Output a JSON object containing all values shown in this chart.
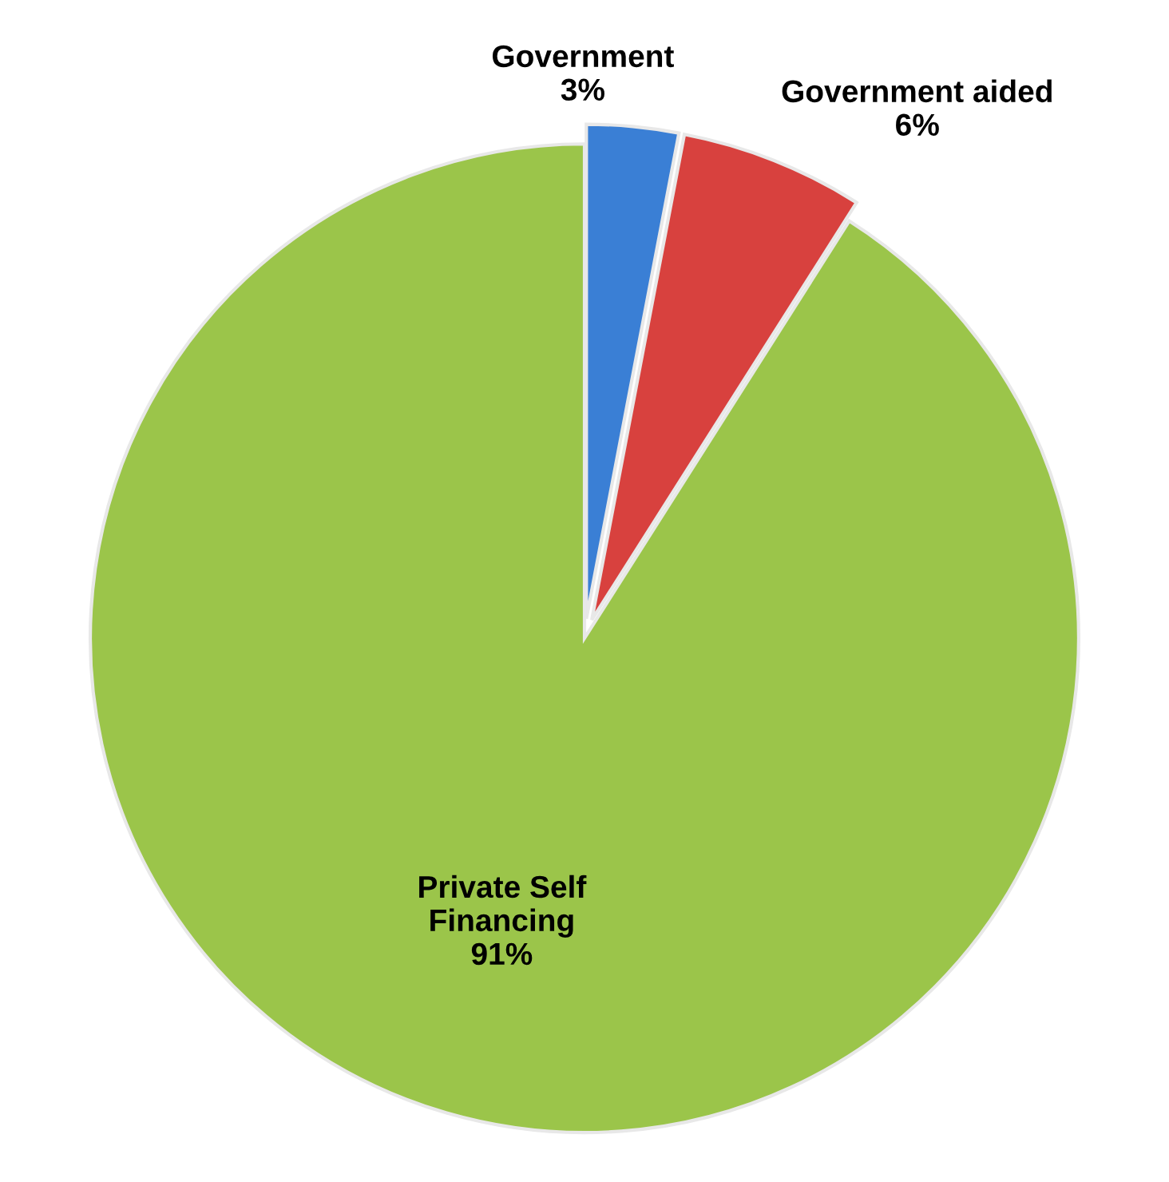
{
  "chart_data": {
    "type": "pie",
    "categories": [
      "Government",
      "Government aided",
      "Private Self\nFinancing"
    ],
    "values": [
      3,
      6,
      91
    ],
    "value_labels": [
      "3%",
      "6%",
      "91%"
    ],
    "colors": [
      "#3a7fd5",
      "#d8413e",
      "#9bc54a"
    ],
    "legend": false
  }
}
